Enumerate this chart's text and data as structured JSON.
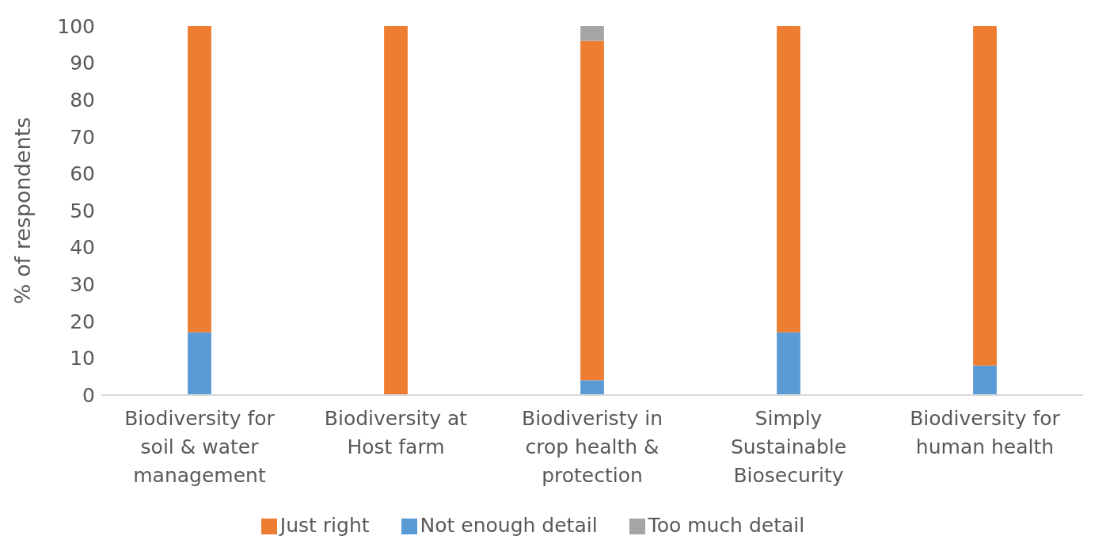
{
  "chart_data": {
    "type": "bar",
    "stacked": true,
    "ylabel": "% of respondents",
    "categories": [
      "Biodiversity for soil & water management",
      "Biodiversity at Host farm",
      "Biodiveristy in crop health & protection",
      "Simply Sustainable Biosecurity",
      "Biodiversity for human health"
    ],
    "series": [
      {
        "name": "Not enough detail",
        "color": "#5b9bd5",
        "values": [
          17,
          0,
          4,
          17,
          8
        ]
      },
      {
        "name": "Just right",
        "color": "#ed7d31",
        "values": [
          83,
          100,
          92,
          83,
          92
        ]
      },
      {
        "name": "Too much detail",
        "color": "#a5a5a5",
        "values": [
          0,
          0,
          4,
          0,
          0
        ]
      }
    ],
    "ylim": [
      0,
      100
    ],
    "yticks": [
      0,
      10,
      20,
      30,
      40,
      50,
      60,
      70,
      80,
      90,
      100
    ],
    "grid": false,
    "legend": "bottom"
  }
}
